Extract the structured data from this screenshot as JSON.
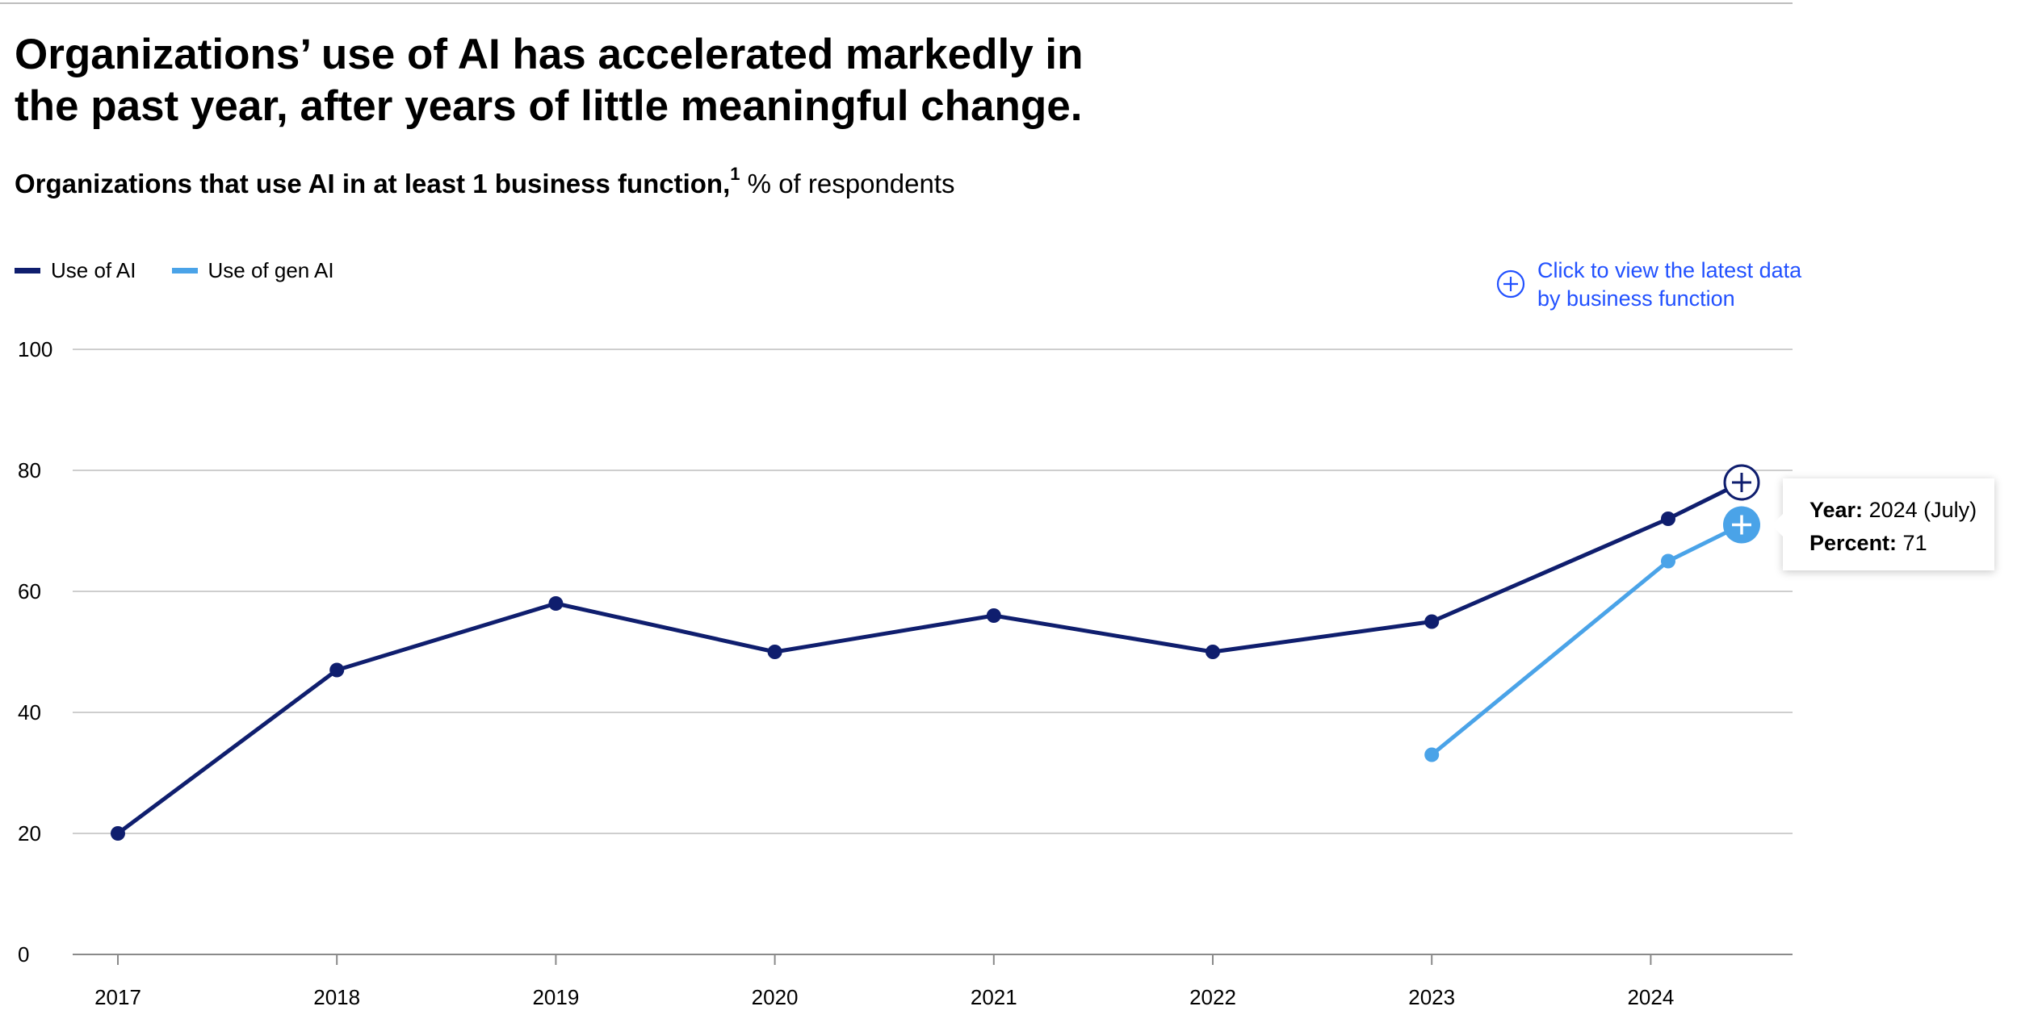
{
  "title": "Organizations’ use of AI has accelerated markedly in the past year, after years of little meaningful change.",
  "subtitle": {
    "bold": "Organizations that use AI in at least 1 business function,",
    "footnote_marker": "1",
    "regular": " % of respondents"
  },
  "legend": [
    {
      "label": "Use of AI",
      "color": "#0f1e6e"
    },
    {
      "label": "Use of gen AI",
      "color": "#4aa3e8"
    }
  ],
  "cta": {
    "icon": "plus-circle-icon",
    "text": "Click to view the latest data by business function"
  },
  "tooltip": {
    "year_label": "Year:",
    "year_value": " 2024 (July)",
    "percent_label": "Percent:",
    "percent_value": " 71"
  },
  "colors": {
    "ai": "#0f1e6e",
    "gen_ai": "#4aa3e8",
    "link": "#2251ff",
    "grid": "#bdbdbd"
  },
  "chart_data": {
    "type": "line",
    "title": "Organizations that use AI in at least 1 business function, % of respondents",
    "ylim": [
      0,
      100
    ],
    "yticks": [
      0,
      20,
      40,
      60,
      80,
      100
    ],
    "xticks": [
      "2017",
      "2018",
      "2019",
      "2020",
      "2021",
      "2022",
      "2023",
      "2024"
    ],
    "grid": true,
    "series": [
      {
        "name": "Use of AI",
        "color": "#0f1e6e",
        "points": [
          {
            "x": "2017",
            "y": 20
          },
          {
            "x": "2018",
            "y": 47
          },
          {
            "x": "2019",
            "y": 58
          },
          {
            "x": "2020",
            "y": 50
          },
          {
            "x": "2021",
            "y": 56
          },
          {
            "x": "2022",
            "y": 50
          },
          {
            "x": "2023",
            "y": 55
          },
          {
            "x": "2024 (early)",
            "y": 72
          },
          {
            "x": "2024 (July)",
            "y": 78,
            "highlighted": true
          }
        ]
      },
      {
        "name": "Use of gen AI",
        "color": "#4aa3e8",
        "points": [
          {
            "x": "2023",
            "y": 33
          },
          {
            "x": "2024 (early)",
            "y": 65
          },
          {
            "x": "2024 (July)",
            "y": 71,
            "highlighted": true
          }
        ]
      }
    ]
  }
}
